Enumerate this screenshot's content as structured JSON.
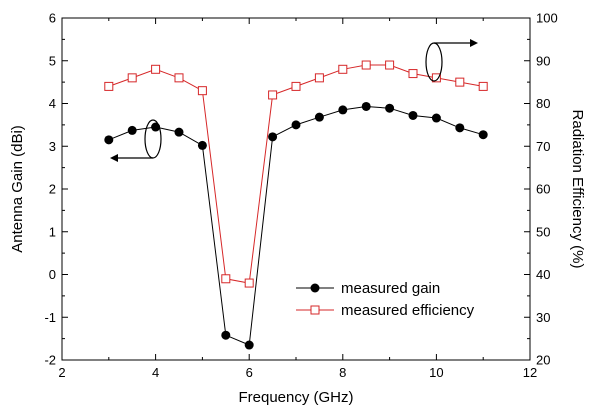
{
  "chart_data": {
    "type": "line",
    "title": "",
    "xlabel": "Frequency (GHz)",
    "ylabel_left": "Antenna Gain (dBi)",
    "ylabel_right": "Radiation Efficiency (%)",
    "xlim": [
      2,
      12
    ],
    "ylim_left": [
      -2,
      6
    ],
    "ylim_right": [
      20,
      100
    ],
    "x_ticks": [
      "2",
      "4",
      "6",
      "8",
      "10",
      "12"
    ],
    "y_left_ticks": [
      "-2",
      "-1",
      "0",
      "1",
      "2",
      "3",
      "4",
      "5",
      "6"
    ],
    "y_right_ticks": [
      "20",
      "30",
      "40",
      "50",
      "60",
      "70",
      "80",
      "90",
      "100"
    ],
    "grid": false,
    "legend_position": "bottom-right",
    "series": [
      {
        "name": "measured gain",
        "axis": "left",
        "color": "#000000",
        "marker": "filled-circle",
        "x": [
          3,
          3.5,
          4,
          4.5,
          5,
          5.5,
          6,
          6.5,
          7,
          7.5,
          8,
          8.5,
          9,
          9.5,
          10,
          10.5,
          11
        ],
        "y": [
          3.15,
          3.37,
          3.45,
          3.33,
          3.02,
          -1.42,
          -1.65,
          3.22,
          3.5,
          3.68,
          3.85,
          3.93,
          3.89,
          3.72,
          3.66,
          3.43,
          3.27
        ]
      },
      {
        "name": "measured efficiency",
        "axis": "right",
        "color": "#d62728",
        "marker": "open-square",
        "x": [
          3,
          3.5,
          4,
          4.5,
          5,
          5.5,
          6,
          6.5,
          7,
          7.5,
          8,
          8.5,
          9,
          9.5,
          10,
          10.5,
          11
        ],
        "y": [
          84,
          86,
          88,
          86,
          83,
          39,
          38,
          82,
          84,
          86,
          88,
          89,
          89,
          87,
          86,
          85,
          84
        ]
      }
    ]
  }
}
